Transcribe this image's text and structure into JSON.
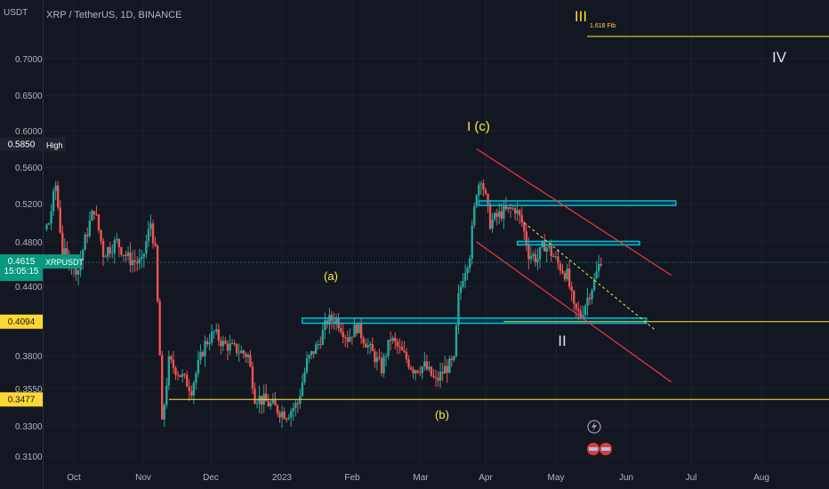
{
  "header": {
    "symbol_title": "XRP / TetherUS, 1D, BINANCE",
    "currency": "USDT"
  },
  "colors": {
    "background": "#131722",
    "up_candle": "#26a69a",
    "down_candle": "#ef5350",
    "annotation_yellow": "#ffeb3b",
    "zone_cyan": "#00bcd4",
    "channel_red": "#f23645",
    "price_label": "#089981"
  },
  "chart_data": {
    "type": "candlestick",
    "symbol": "XRPUSDT",
    "interval": "1D",
    "exchange": "BINANCE",
    "ylim": [
      0.305,
      0.75
    ],
    "y_ticks": [
      "0.7000",
      "0.6500",
      "0.6000",
      "0.5600",
      "0.5200",
      "0.4800",
      "0.4400",
      "0.3800",
      "0.3550",
      "0.3300",
      "0.3100"
    ],
    "x_ticks": [
      "Oct",
      "Nov",
      "Dec",
      "2023",
      "Feb",
      "Mar",
      "Apr",
      "May",
      "Jun",
      "Jul",
      "Aug"
    ],
    "price_labels": {
      "high_value": "0.5850",
      "high_text": "High",
      "current_value": "0.4615",
      "current_symbol": "XRPUSDT",
      "countdown": "15:05:15",
      "level_1": "0.4094",
      "level_2": "0.3477"
    },
    "horizontal_levels": [
      0.4094,
      0.3477
    ],
    "annotations": {
      "wave_a": "(a)",
      "wave_b": "(b)",
      "wave_c": "I (c)",
      "wave_II": "II",
      "wave_III": "III",
      "wave_IV": "IV",
      "fib_label": "1.618 Fib"
    },
    "zones": [
      {
        "name": "resistance-zone",
        "from": "2023-03-29",
        "to": "2023-06-24",
        "low": 0.518,
        "high": 0.523
      },
      {
        "name": "mid-zone",
        "from": "2023-04-15",
        "to": "2023-06-08",
        "low": 0.4775,
        "high": 0.4805
      },
      {
        "name": "support-zone",
        "from": "2023-01-10",
        "to": "2023-06-11",
        "low": 0.408,
        "high": 0.4125
      }
    ]
  }
}
